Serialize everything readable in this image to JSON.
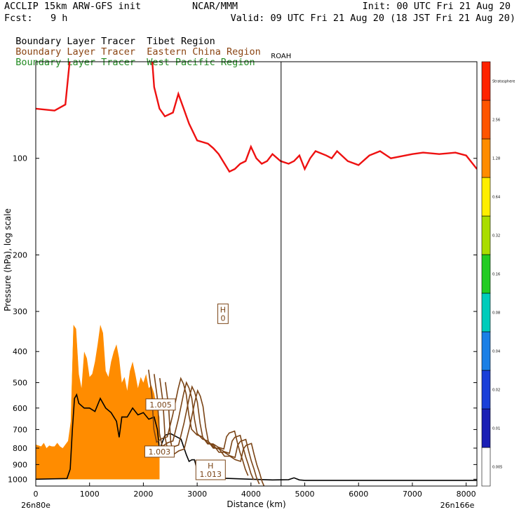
{
  "header": {
    "title_left": "ACCLIP 15km ARW-GFS init",
    "title_center": "NCAR/MMM",
    "init": "Init: 00 UTC Fri 21 Aug 20",
    "fcst_label": "Fcst:",
    "fcst_value": "9 h",
    "valid": "Valid: 09 UTC Fri 21 Aug 20 (18 JST Fri 21 Aug 20)"
  },
  "legend": [
    {
      "tracer": "Boundary Layer Tracer",
      "region": "Tibet Region",
      "color": "#000000"
    },
    {
      "tracer": "Boundary Layer Tracer",
      "region": "Eastern China Region",
      "color": "#8B4513"
    },
    {
      "tracer": "Boundary Layer Tracer",
      "region": "West Pacific Region",
      "color": "#228B22"
    }
  ],
  "colors": {
    "tropopause": "#ee1111",
    "tibet": "#000000",
    "china": "#7a4416",
    "fill_orange": "#ff8c00",
    "fill_yellow": "#ffee00",
    "fill_green": "#22cc22",
    "fill_teal": "#00ccbb",
    "fill_blue": "#1a7fe6",
    "fill_darkblue": "#1a3fd9"
  },
  "chart_data": {
    "type": "area",
    "xlabel": "Distance (km)",
    "ylabel": "Pressure (hPa), log scale",
    "xlim": [
      0,
      8200
    ],
    "ylim": [
      1050,
      50
    ],
    "y_scale": "log",
    "x_ticks": [
      0,
      1000,
      2000,
      3000,
      4000,
      5000,
      6000,
      7000,
      8000
    ],
    "y_ticks": [
      100,
      200,
      300,
      400,
      500,
      600,
      700,
      800,
      900,
      1000
    ],
    "start_label": "26n80e",
    "end_label": "26n166e",
    "marker": {
      "label": "ROAH",
      "x": 4560
    },
    "annotations": [
      {
        "text": "H\n0",
        "x": 3480,
        "p": 305,
        "color": "#7a4416"
      },
      {
        "text": "1.005",
        "x": 2320,
        "p": 585,
        "color": "#7a4416"
      },
      {
        "text": "1.003",
        "x": 2300,
        "p": 820,
        "color": "#7a4416"
      },
      {
        "text": "H\n1.013",
        "x": 3250,
        "p": 935,
        "color": "#7a4416"
      }
    ],
    "series": [
      {
        "name": "Tropopause",
        "x": [
          0,
          350,
          550,
          630,
          720,
          1480,
          1520,
          1600,
          1780,
          2000,
          2150,
          2200,
          2300,
          2400,
          2550,
          2650,
          2750,
          2800,
          2850,
          3000,
          3200,
          3300,
          3400,
          3600,
          3700,
          3800,
          3900,
          4000,
          4100,
          4200,
          4300,
          4400,
          4550,
          4700,
          4800,
          4900,
          5000,
          5100,
          5200,
          5400,
          5500,
          5600,
          5800,
          6000,
          6200,
          6400,
          6600,
          7000,
          7200,
          7500,
          7800,
          8000,
          8200
        ],
        "p": [
          70,
          71,
          68,
          50,
          40,
          40,
          48,
          42,
          40,
          40,
          46,
          60,
          70,
          74,
          72,
          63,
          70,
          74,
          78,
          88,
          90,
          93,
          97,
          110,
          108,
          104,
          102,
          92,
          100,
          104,
          102,
          97,
          102,
          104,
          102,
          98,
          108,
          100,
          95,
          98,
          100,
          95,
          102,
          105,
          98,
          95,
          100,
          97,
          96,
          97,
          96,
          98,
          108
        ]
      },
      {
        "name": "Tibet Region",
        "x": [
          0,
          580,
          640,
          680,
          720,
          760,
          800,
          900,
          1000,
          1100,
          1200,
          1300,
          1400,
          1500,
          1550,
          1600,
          1700,
          1800,
          1900,
          2000,
          2100,
          2200,
          2260,
          2300,
          2400,
          2500,
          2600,
          2700,
          2800,
          2850,
          2900,
          2950,
          3000,
          3100,
          3200,
          3300,
          3400,
          3500,
          4000,
          4400,
          4700,
          4800,
          4900,
          5000,
          6000,
          7000,
          8000,
          8200
        ],
        "p": [
          1000,
          995,
          930,
          700,
          560,
          545,
          580,
          600,
          600,
          615,
          560,
          600,
          620,
          660,
          740,
          640,
          640,
          600,
          630,
          620,
          650,
          640,
          700,
          810,
          730,
          720,
          735,
          750,
          840,
          880,
          870,
          870,
          935,
          920,
          970,
          980,
          990,
          993,
          1000,
          1005,
          1003,
          990,
          1005,
          1008,
          1008,
          1008,
          1008,
          1008
        ]
      },
      {
        "name": "Eastern China Region",
        "x": [
          2200,
          2260,
          2300,
          2350,
          2450,
          2550,
          2650,
          2750,
          2800,
          2850,
          2900,
          2950,
          3000,
          3100,
          3200,
          3300,
          3400,
          3500,
          3600,
          3650,
          3700,
          3800,
          3850,
          3900,
          3950,
          4000,
          4050
        ],
        "p": [
          470,
          560,
          720,
          790,
          770,
          760,
          650,
          540,
          500,
          520,
          560,
          650,
          720,
          750,
          760,
          800,
          800,
          820,
          830,
          760,
          740,
          730,
          790,
          850,
          900,
          960,
          1005
        ]
      }
    ],
    "bands": [
      {
        "name": "0.01",
        "color": "#ff8c00"
      },
      {
        "name": "0.02",
        "color": "#ffee00"
      },
      {
        "name": "0.04",
        "color": "#22cc22"
      },
      {
        "name": "0.08",
        "color": "#00ccbb"
      },
      {
        "name": "0.16",
        "color": "#1a7fe6"
      },
      {
        "name": "0.32",
        "color": "#1a3fd9"
      }
    ],
    "plume_top": {
      "x": [
        0,
        100,
        150,
        200,
        250,
        300,
        350,
        400,
        450,
        500,
        550,
        600,
        650,
        700,
        750,
        800,
        850,
        900,
        950,
        1000,
        1050,
        1100,
        1150,
        1200,
        1250,
        1300,
        1350,
        1400,
        1450,
        1500,
        1550,
        1600,
        1650,
        1700,
        1750,
        1800,
        1850,
        1900,
        1950,
        2000,
        2050,
        2100,
        2150,
        2200,
        2250,
        2300
      ],
      "p": [
        780,
        790,
        770,
        800,
        785,
        790,
        790,
        770,
        790,
        800,
        780,
        760,
        660,
        330,
        340,
        470,
        520,
        400,
        420,
        480,
        470,
        430,
        380,
        330,
        350,
        460,
        480,
        430,
        400,
        380,
        420,
        500,
        480,
        530,
        460,
        430,
        470,
        520,
        480,
        500,
        470,
        520,
        510,
        540,
        600,
        640
      ]
    },
    "colorbar": {
      "labels": [
        "0.005",
        "0.01",
        "0.02",
        "0.04",
        "0.08",
        "0.16",
        "0.32",
        "0.64",
        "1.28",
        "2.56",
        "Stratosphere"
      ],
      "colors": [
        "#ffffff",
        "#1a1fb5",
        "#1a3fd9",
        "#1a7fe6",
        "#00ccbb",
        "#22cc22",
        "#aadd00",
        "#ffee00",
        "#ff8c00",
        "#ff5500",
        "#ff2200"
      ]
    }
  }
}
